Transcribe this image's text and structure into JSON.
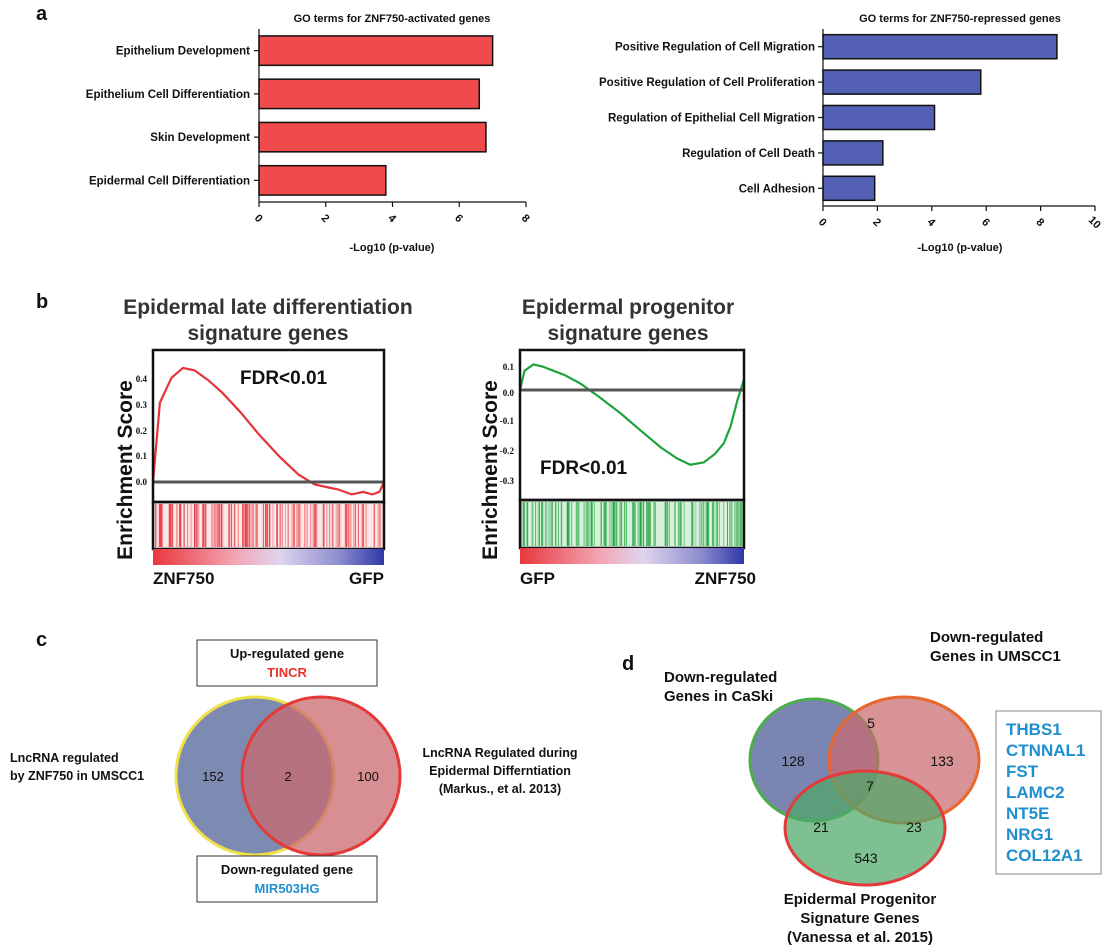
{
  "panels": {
    "a": "a",
    "b": "b",
    "c": "c",
    "d": "d"
  },
  "colors": {
    "activated_bar": "#ef4a4c",
    "repressed_bar": "#5460b3",
    "gsea_late": "#e6333a",
    "gsea_progenitor": "#1ea33c",
    "highlight_blue": "#1f8fcf",
    "highlight_red": "#e8322f"
  },
  "chart_data": [
    {
      "type": "bar",
      "orientation": "horizontal",
      "title": "GO terms for ZNF750-activated genes",
      "categories": [
        "Epithelium Development",
        "Epithelium Cell Differentiation",
        "Skin Development",
        "Epidermal Cell Differentiation"
      ],
      "values": [
        7.0,
        6.6,
        6.8,
        3.8
      ],
      "xlabel": "-Log10 (p-value)",
      "xlim": [
        0,
        8
      ],
      "xticks": [
        "0",
        "2",
        "4",
        "6",
        "8"
      ],
      "grid": false
    },
    {
      "type": "bar",
      "orientation": "horizontal",
      "title": "GO terms for ZNF750-repressed genes",
      "categories": [
        "Positive Regulation of Cell Migration",
        "Positive Regulation of Cell Proliferation",
        "Regulation of Epithelial Cell Migration",
        "Regulation of Cell Death",
        "Cell Adhesion"
      ],
      "values": [
        8.6,
        5.8,
        4.1,
        2.2,
        1.9
      ],
      "xlabel": "-Log10 (p-value)",
      "xlim": [
        0,
        10
      ],
      "xticks": [
        "0",
        "2",
        "4",
        "6",
        "8",
        "10"
      ],
      "grid": false
    },
    {
      "type": "line",
      "title": "Epidermal late differentiation signature genes",
      "title_lines": [
        "Epidermal late differentiation",
        "signature genes"
      ],
      "ylabel": "Enrichment Score",
      "yticks": [
        "0.4",
        "0.3",
        "0.2",
        "0.1",
        "0.0"
      ],
      "ylim": [
        -0.05,
        0.5
      ],
      "annotation": "FDR<0.01",
      "x_left_label": "ZNF750",
      "x_right_label": "GFP",
      "series": [
        {
          "x": [
            0,
            0.03,
            0.08,
            0.13,
            0.18,
            0.24,
            0.3,
            0.38,
            0.46,
            0.55,
            0.63,
            0.7,
            0.75,
            0.8,
            0.86,
            0.91,
            0.95,
            0.98,
            1.0
          ],
          "values": [
            0.0,
            0.32,
            0.42,
            0.46,
            0.45,
            0.41,
            0.36,
            0.28,
            0.19,
            0.1,
            0.03,
            -0.01,
            -0.02,
            -0.03,
            -0.05,
            -0.04,
            -0.05,
            -0.04,
            0.0
          ]
        }
      ]
    },
    {
      "type": "line",
      "title": "Epidermal progenitor signature genes",
      "title_lines": [
        "Epidermal progenitor",
        "signature genes"
      ],
      "ylabel": "Enrichment Score",
      "yticks": [
        "0.1",
        "0.0",
        "-0.1",
        "-0.2",
        "-0.3"
      ],
      "ylim": [
        -0.4,
        0.15
      ],
      "annotation": "FDR<0.01",
      "x_left_label": "GFP",
      "x_right_label": "ZNF750",
      "series": [
        {
          "x": [
            0,
            0.02,
            0.06,
            0.1,
            0.15,
            0.2,
            0.27,
            0.35,
            0.45,
            0.55,
            0.63,
            0.7,
            0.76,
            0.82,
            0.87,
            0.91,
            0.94,
            0.97,
            1.0
          ],
          "values": [
            0.0,
            0.09,
            0.12,
            0.11,
            0.09,
            0.07,
            0.03,
            -0.03,
            -0.11,
            -0.2,
            -0.27,
            -0.32,
            -0.35,
            -0.34,
            -0.3,
            -0.25,
            -0.17,
            -0.05,
            0.05
          ]
        }
      ]
    }
  ],
  "venn_c": {
    "left_label": [
      "LncRNA regulated",
      "by ZNF750 in UMSCC1"
    ],
    "right_label": [
      "LncRNA Regulated during",
      "Epidermal Differntiation",
      "(Markus., et al. 2013)"
    ],
    "left_only": "152",
    "overlap": "2",
    "right_only": "100",
    "up_box_title": "Up-regulated gene",
    "up_box_gene": "TINCR",
    "down_box_title": "Down-regulated gene",
    "down_box_gene": "MIR503HG"
  },
  "venn_d": {
    "caski_label": [
      "Down-regulated",
      "Genes in CaSki"
    ],
    "umscc1_label": [
      "Down-regulated",
      "Genes in UMSCC1"
    ],
    "progenitor_label": [
      "Epidermal Progenitor",
      "Signature Genes",
      "(Vanessa et al. 2015)"
    ],
    "caski_only": "128",
    "caski_umscc1": "5",
    "umscc1_only": "133",
    "all_three": "7",
    "caski_prog": "21",
    "umscc1_prog": "23",
    "prog_only": "543",
    "genes": [
      "THBS1",
      "CTNNAL1",
      "FST",
      "LAMC2",
      "NT5E",
      "NRG1",
      "COL12A1"
    ]
  }
}
